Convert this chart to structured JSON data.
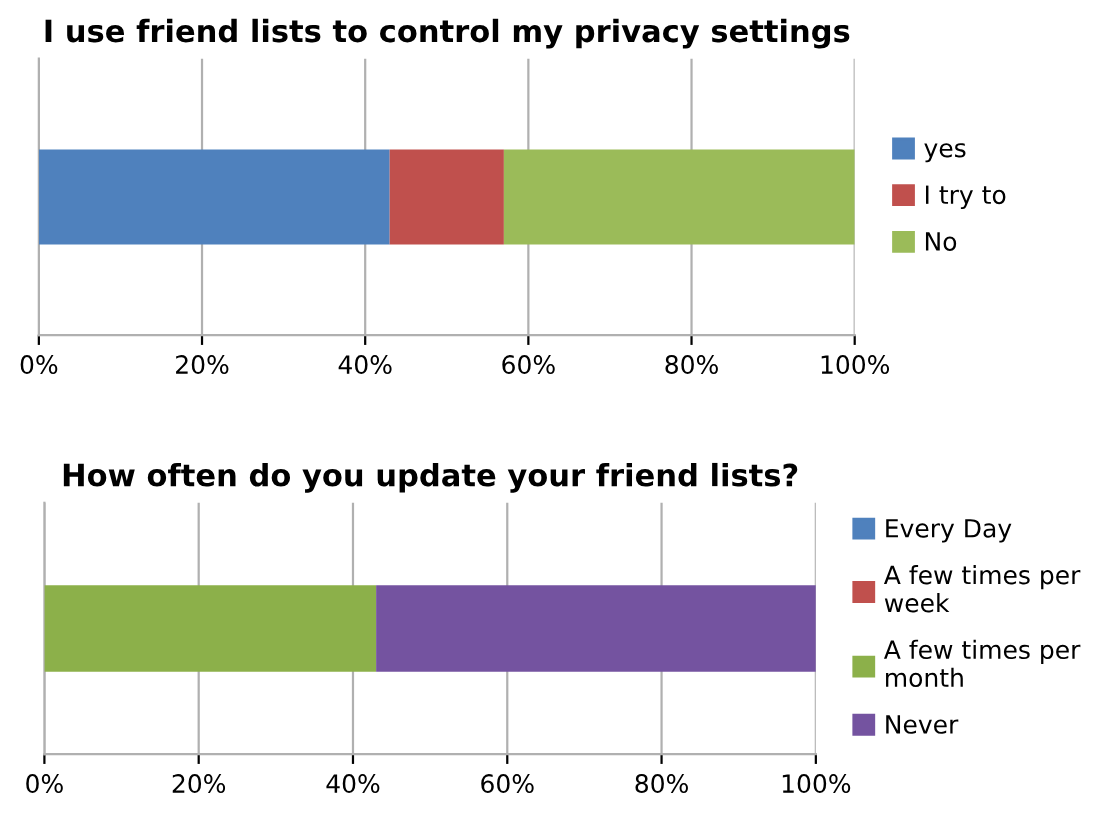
{
  "chart_data": [
    {
      "type": "bar",
      "title": "I use friend lists to control my privacy settings",
      "orientation": "horizontal",
      "stacked": true,
      "categories": [
        null
      ],
      "series": [
        {
          "name": "yes",
          "color": "#4f81bd",
          "values": [
            43
          ]
        },
        {
          "name": "I try to",
          "color": "#c0504d",
          "values": [
            14
          ]
        },
        {
          "name": "No",
          "color": "#9bbb59",
          "values": [
            43
          ]
        }
      ],
      "xlim": [
        0,
        100
      ],
      "xticks": [
        {
          "value": 0,
          "label": "0%"
        },
        {
          "value": 20,
          "label": "20%"
        },
        {
          "value": 40,
          "label": "40%"
        },
        {
          "value": 60,
          "label": "60%"
        },
        {
          "value": 80,
          "label": "80%"
        },
        {
          "value": 100,
          "label": "100%"
        }
      ],
      "grid": "x",
      "legend": "right"
    },
    {
      "type": "bar",
      "title": "How often do you update your friend lists?",
      "orientation": "horizontal",
      "stacked": true,
      "categories": [
        null
      ],
      "series": [
        {
          "name": "Every Day",
          "color": "#4f81bd",
          "values": [
            0
          ]
        },
        {
          "name": "A few times per week",
          "color": "#c0504d",
          "values": [
            0
          ]
        },
        {
          "name": "A few times per month",
          "color": "#8cb04a",
          "values": [
            43
          ]
        },
        {
          "name": "Never",
          "color": "#7453a0",
          "values": [
            57
          ]
        }
      ],
      "xlim": [
        0,
        100
      ],
      "xticks": [
        {
          "value": 0,
          "label": "0%"
        },
        {
          "value": 20,
          "label": "20%"
        },
        {
          "value": 40,
          "label": "40%"
        },
        {
          "value": 60,
          "label": "60%"
        },
        {
          "value": 80,
          "label": "80%"
        },
        {
          "value": 100,
          "label": "100%"
        }
      ],
      "grid": "x",
      "legend": "right"
    }
  ]
}
